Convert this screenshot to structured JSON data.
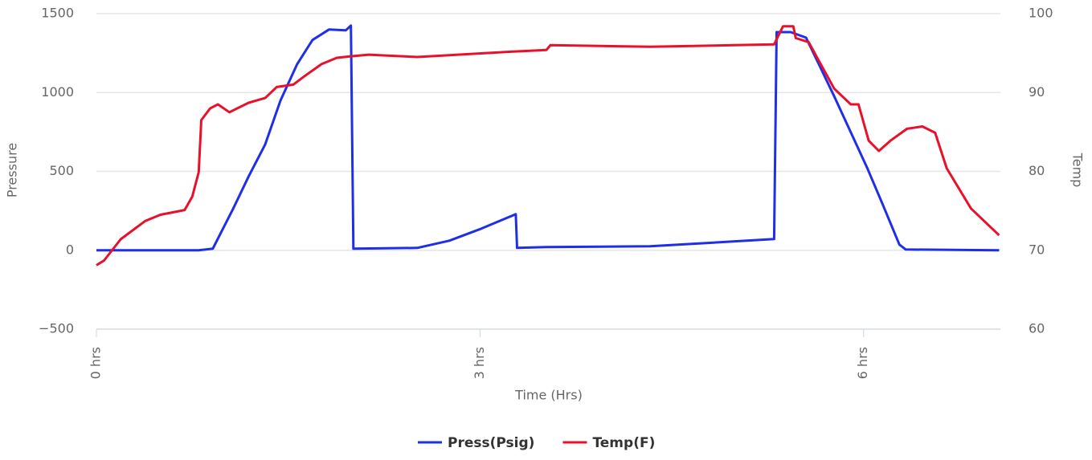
{
  "chart_data": {
    "type": "line",
    "xlabel": "Time (Hrs)",
    "ylabel": "Pressure",
    "y2label": "Temp",
    "xlim": [
      0,
      7.07
    ],
    "xticks": [
      {
        "value": 0,
        "label": "0 hrs"
      },
      {
        "value": 3,
        "label": "3 hrs"
      },
      {
        "value": 6,
        "label": "6 hrs"
      }
    ],
    "ylim": [
      -500,
      1500
    ],
    "yticks": [
      {
        "value": -500,
        "label": "−500"
      },
      0,
      500,
      1000,
      1500
    ],
    "y2lim": [
      60,
      100
    ],
    "y2ticks": [
      60,
      70,
      80,
      90,
      100
    ],
    "grid": true,
    "legend": "bottom",
    "series": [
      {
        "name": "Press(Psig)",
        "color": "#1f2fe8",
        "x": [
          0,
          0.8,
          0.91,
          1.07,
          1.19,
          1.32,
          1.44,
          1.57,
          1.69,
          1.82,
          1.95,
          1.99,
          2.01,
          2.51,
          2.76,
          3.01,
          3.28,
          3.29,
          3.52,
          4.33,
          5.3,
          5.32,
          5.43,
          5.55,
          5.65,
          5.77,
          5.9,
          6.03,
          6.15,
          6.28,
          6.33,
          7.06
        ],
        "values": [
          0,
          0,
          10,
          265,
          468,
          671,
          950,
          1180,
          1333,
          1400,
          1394,
          1424,
          10,
          15,
          61,
          137,
          229,
          15,
          20,
          25,
          71,
          1383,
          1383,
          1348,
          1180,
          977,
          748,
          519,
          290,
          36,
          5,
          0
        ]
      },
      {
        "name": "Temp(F)",
        "color": "#e8102a",
        "axis": "y2",
        "x": [
          0,
          0.06,
          0.19,
          0.38,
          0.5,
          0.69,
          0.75,
          0.8,
          0.82,
          0.89,
          0.95,
          1.04,
          1.19,
          1.32,
          1.41,
          1.54,
          1.63,
          1.76,
          1.88,
          1.99,
          2.13,
          2.51,
          3.26,
          3.52,
          3.55,
          4.33,
          5.3,
          5.37,
          5.45,
          5.47,
          5.57,
          5.77,
          5.9,
          5.96,
          6.04,
          6.12,
          6.21,
          6.34,
          6.46,
          6.56,
          6.65,
          6.84,
          7.06
        ],
        "values": [
          68.1,
          68.7,
          71.4,
          73.7,
          74.5,
          75.1,
          76.8,
          79.9,
          86.5,
          88.0,
          88.5,
          87.5,
          88.7,
          89.3,
          90.7,
          91.0,
          92.1,
          93.6,
          94.4,
          94.6,
          94.8,
          94.5,
          95.2,
          95.4,
          96.0,
          95.8,
          96.1,
          98.4,
          98.4,
          96.9,
          96.4,
          90.5,
          88.5,
          88.5,
          83.9,
          82.6,
          83.9,
          85.4,
          85.7,
          84.9,
          80.4,
          75.3,
          71.9
        ]
      }
    ]
  }
}
